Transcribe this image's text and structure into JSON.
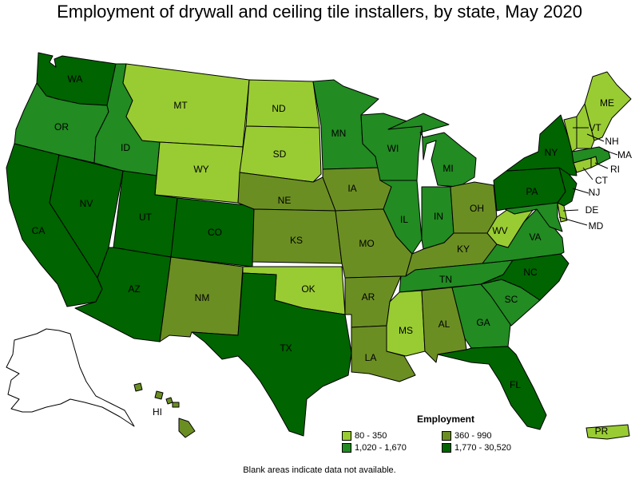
{
  "title": "Employment of drywall and ceiling tile installers, by state, May 2020",
  "footnote": "Blank areas indicate data not available.",
  "legend": {
    "title": "Employment",
    "items": [
      {
        "label": "80 - 350",
        "color": "#99cc33"
      },
      {
        "label": "360 - 990",
        "color": "#6b8e23"
      },
      {
        "label": "1,020 - 1,670",
        "color": "#228b22"
      },
      {
        "label": "1,770 - 30,520",
        "color": "#006400"
      }
    ]
  },
  "colors": {
    "c1": "#99cc33",
    "c2": "#6b8e23",
    "c3": "#228b22",
    "c4": "#006400",
    "blank": "#ffffff"
  },
  "states": [
    {
      "abbr": "WA",
      "class": "c4"
    },
    {
      "abbr": "OR",
      "class": "c3"
    },
    {
      "abbr": "CA",
      "class": "c4"
    },
    {
      "abbr": "NV",
      "class": "c4"
    },
    {
      "abbr": "ID",
      "class": "c3"
    },
    {
      "abbr": "MT",
      "class": "c1"
    },
    {
      "abbr": "WY",
      "class": "c1"
    },
    {
      "abbr": "UT",
      "class": "c4"
    },
    {
      "abbr": "AZ",
      "class": "c4"
    },
    {
      "abbr": "CO",
      "class": "c4"
    },
    {
      "abbr": "NM",
      "class": "c2"
    },
    {
      "abbr": "ND",
      "class": "c1"
    },
    {
      "abbr": "SD",
      "class": "c1"
    },
    {
      "abbr": "NE",
      "class": "c2"
    },
    {
      "abbr": "KS",
      "class": "c2"
    },
    {
      "abbr": "OK",
      "class": "c1"
    },
    {
      "abbr": "TX",
      "class": "c4"
    },
    {
      "abbr": "MN",
      "class": "c3"
    },
    {
      "abbr": "IA",
      "class": "c2"
    },
    {
      "abbr": "MO",
      "class": "c2"
    },
    {
      "abbr": "AR",
      "class": "c2"
    },
    {
      "abbr": "LA",
      "class": "c2"
    },
    {
      "abbr": "WI",
      "class": "c3"
    },
    {
      "abbr": "IL",
      "class": "c3"
    },
    {
      "abbr": "MI",
      "class": "c3"
    },
    {
      "abbr": "IN",
      "class": "c3"
    },
    {
      "abbr": "OH",
      "class": "c2"
    },
    {
      "abbr": "KY",
      "class": "c2"
    },
    {
      "abbr": "TN",
      "class": "c3"
    },
    {
      "abbr": "MS",
      "class": "c1"
    },
    {
      "abbr": "AL",
      "class": "c2"
    },
    {
      "abbr": "GA",
      "class": "c3"
    },
    {
      "abbr": "FL",
      "class": "c4"
    },
    {
      "abbr": "SC",
      "class": "c3"
    },
    {
      "abbr": "NC",
      "class": "c4"
    },
    {
      "abbr": "VA",
      "class": "c3"
    },
    {
      "abbr": "WV",
      "class": "c1"
    },
    {
      "abbr": "PA",
      "class": "c4"
    },
    {
      "abbr": "NY",
      "class": "c4"
    },
    {
      "abbr": "NJ",
      "class": "c4"
    },
    {
      "abbr": "DE",
      "class": "c1"
    },
    {
      "abbr": "MD",
      "class": "c3"
    },
    {
      "abbr": "CT",
      "class": "c1"
    },
    {
      "abbr": "RI",
      "class": "c1"
    },
    {
      "abbr": "MA",
      "class": "c3"
    },
    {
      "abbr": "VT",
      "class": "c1"
    },
    {
      "abbr": "NH",
      "class": "c1"
    },
    {
      "abbr": "ME",
      "class": "c1"
    },
    {
      "abbr": "AK",
      "class": "blank"
    },
    {
      "abbr": "HI",
      "class": "c2"
    },
    {
      "abbr": "PR",
      "class": "c1"
    }
  ]
}
